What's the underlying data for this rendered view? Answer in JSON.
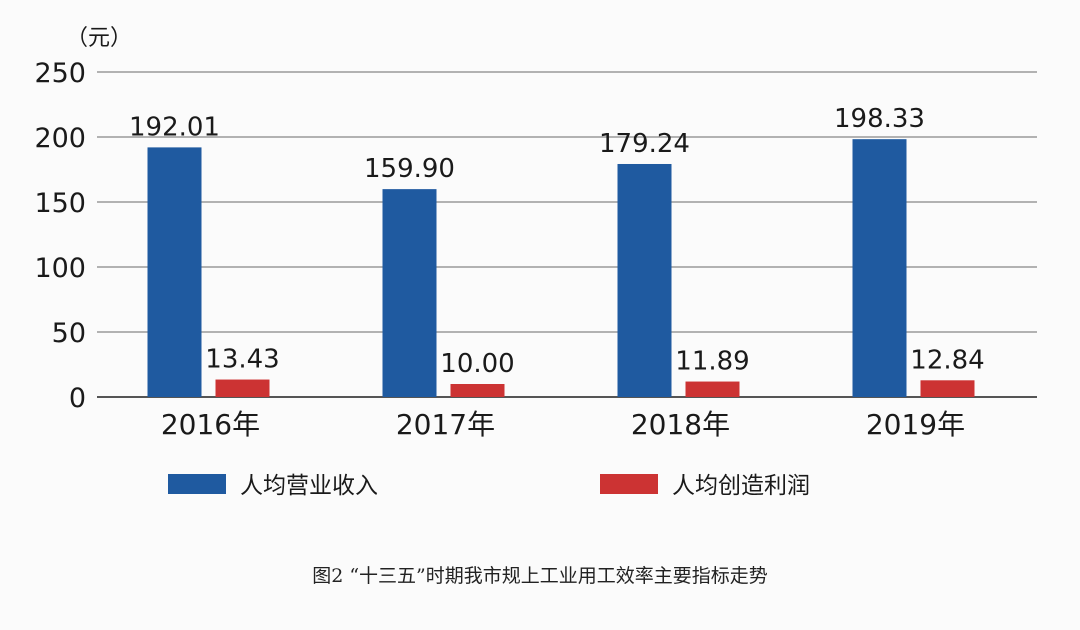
{
  "chart_data": {
    "type": "bar",
    "unit_label": "（元）",
    "categories": [
      "2016年",
      "2017年",
      "2018年",
      "2019年"
    ],
    "series": [
      {
        "name": "人均营业收入",
        "values": [
          192.01,
          159.9,
          179.24,
          198.33
        ],
        "labels": [
          "192.01",
          "159.90",
          "179.24",
          "198.33"
        ],
        "color": "#1f5aa0"
      },
      {
        "name": "人均创造利润",
        "values": [
          13.43,
          10.0,
          11.89,
          12.84
        ],
        "labels": [
          "13.43",
          "10.00",
          "11.89",
          "12.84"
        ],
        "color": "#cc3333"
      }
    ],
    "yticks": [
      "0",
      "50",
      "100",
      "150",
      "200",
      "250"
    ],
    "ylim": [
      0,
      250
    ],
    "grid": true,
    "legend_position": "bottom",
    "caption": "图2 “十三五”时期我市规上工业用工效率主要指标走势"
  }
}
